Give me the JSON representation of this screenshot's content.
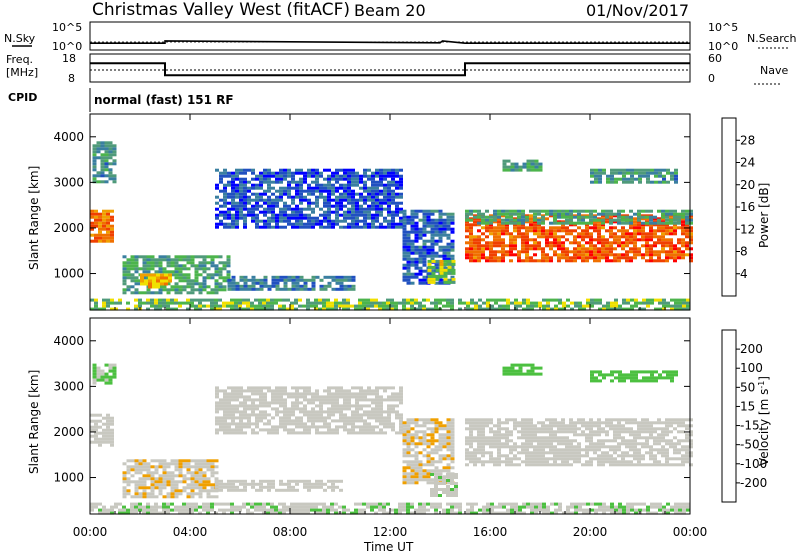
{
  "header": {
    "title": "Christmas Valley West (fitACF)",
    "beam": "Beam 20",
    "date": "01/Nov/2017"
  },
  "status_panel": {
    "nsky_label": "N.Sky",
    "nsearch_label": "N.Search",
    "freq_label_line1": "Freq.",
    "freq_label_line2": "[MHz]",
    "nave_label": "Nave",
    "cpid_label": "CPID",
    "cpid_value": "normal (fast) 151 RF",
    "noise_ticks_left": [
      "10^5",
      "10^0"
    ],
    "noise_ticks_right": [
      "10^5",
      "10^0"
    ],
    "freq_ticks": [
      "18",
      "8"
    ],
    "nave_ticks": [
      "60",
      "0"
    ]
  },
  "time_axis": {
    "label": "Time UT",
    "ticks": [
      "00:00",
      "04:00",
      "08:00",
      "12:00",
      "16:00",
      "20:00",
      "00:00"
    ]
  },
  "colors": {
    "power_scale": [
      "#0000ff",
      "#2050c0",
      "#3a7fa0",
      "#4f9a7a",
      "#4cb44c",
      "#f0e000",
      "#f0a000",
      "#f07000",
      "#f04000",
      "#ff0000"
    ],
    "velocity_scale": [
      "#2020c0",
      "#3050b0",
      "#3a8a5a",
      "#4cc040",
      "#c8c8c0",
      "#c8c8c0",
      "#f0a000",
      "#f08000",
      "#f05000",
      "#ff0000"
    ]
  },
  "chart_data": [
    {
      "type": "line",
      "name": "noise-panel",
      "x_unit": "hours UT",
      "xlim": [
        0,
        24
      ],
      "y_scale": "log",
      "ylim": [
        1,
        100000
      ],
      "series": [
        {
          "name": "N.Sky",
          "x": [
            0,
            3,
            3,
            14,
            14.1,
            15,
            24
          ],
          "y": [
            10,
            10,
            30,
            12,
            30,
            10,
            10
          ]
        }
      ]
    },
    {
      "type": "line",
      "name": "frequency-panel",
      "x_unit": "hours UT",
      "xlim": [
        0,
        24
      ],
      "ylim": [
        8,
        18
      ],
      "series": [
        {
          "name": "Freq.",
          "x": [
            0,
            3,
            3,
            15,
            15,
            24
          ],
          "y": [
            15,
            15,
            10,
            10,
            15,
            15
          ]
        }
      ]
    },
    {
      "type": "heatmap",
      "name": "power-panel",
      "xlabel": "Time UT",
      "ylabel": "Slant Range [km]",
      "x_unit": "hours UT",
      "xlim": [
        0,
        24
      ],
      "ylim": [
        200,
        4500
      ],
      "yticks": [
        1000,
        2000,
        3000,
        4000
      ],
      "colorbar": {
        "label": "Power [dB]",
        "ticks": [
          4,
          8,
          12,
          16,
          20,
          24,
          28
        ],
        "range": [
          0,
          32
        ]
      },
      "regions": [
        {
          "t0": 0.0,
          "t1": 0.9,
          "r0": 1700,
          "r1": 2400,
          "value": 24
        },
        {
          "t0": 0.1,
          "t1": 1.0,
          "r0": 3000,
          "r1": 3900,
          "value": 10
        },
        {
          "t0": 1.3,
          "t1": 5.5,
          "r0": 600,
          "r1": 1400,
          "value": 12
        },
        {
          "t0": 2.0,
          "t1": 3.2,
          "r0": 700,
          "r1": 1000,
          "value": 20
        },
        {
          "t0": 5.5,
          "t1": 10.5,
          "r0": 650,
          "r1": 950,
          "value": 8
        },
        {
          "t0": 5.0,
          "t1": 12.5,
          "r0": 2000,
          "r1": 3300,
          "value": 5
        },
        {
          "t0": 12.5,
          "t1": 14.5,
          "r0": 800,
          "r1": 2400,
          "value": 6
        },
        {
          "t0": 13.5,
          "t1": 14.6,
          "r0": 800,
          "r1": 1300,
          "value": 16
        },
        {
          "t0": 15.0,
          "t1": 24.0,
          "r0": 1300,
          "r1": 2300,
          "value": 26
        },
        {
          "t0": 15.0,
          "t1": 24.0,
          "r0": 2100,
          "r1": 2400,
          "value": 12
        },
        {
          "t0": 16.5,
          "t1": 18.0,
          "r0": 3250,
          "r1": 3500,
          "value": 12
        },
        {
          "t0": 20.0,
          "t1": 23.5,
          "r0": 3000,
          "r1": 3300,
          "value": 10
        },
        {
          "t0": 0.0,
          "t1": 24.0,
          "r0": 200,
          "r1": 450,
          "value": 14
        }
      ]
    },
    {
      "type": "heatmap",
      "name": "velocity-panel",
      "xlabel": "Time UT",
      "ylabel": "Slant Range [km]",
      "x_unit": "hours UT",
      "xlim": [
        0,
        24
      ],
      "ylim": [
        200,
        4500
      ],
      "yticks": [
        1000,
        2000,
        3000,
        4000
      ],
      "colorbar": {
        "label": "Velocity [m s^-1]",
        "ticks": [
          200,
          100,
          50,
          15,
          -15,
          -50,
          -100,
          -200
        ],
        "range": [
          -250,
          250
        ]
      },
      "regions": [
        {
          "t0": 0.0,
          "t1": 0.9,
          "r0": 1700,
          "r1": 2400,
          "value": 0
        },
        {
          "t0": 0.1,
          "t1": 1.0,
          "r0": 3100,
          "r1": 3500,
          "value": -60
        },
        {
          "t0": 1.3,
          "t1": 5.0,
          "r0": 600,
          "r1": 1400,
          "value": 40
        },
        {
          "t0": 5.0,
          "t1": 10.0,
          "r0": 700,
          "r1": 950,
          "value": 0
        },
        {
          "t0": 5.0,
          "t1": 12.5,
          "r0": 2000,
          "r1": 3000,
          "value": 0
        },
        {
          "t0": 12.5,
          "t1": 14.5,
          "r0": 900,
          "r1": 2300,
          "value": 40
        },
        {
          "t0": 13.6,
          "t1": 14.6,
          "r0": 600,
          "r1": 1100,
          "value": -40
        },
        {
          "t0": 15.0,
          "t1": 24.0,
          "r0": 1300,
          "r1": 2300,
          "value": 0
        },
        {
          "t0": 16.5,
          "t1": 18.0,
          "r0": 3250,
          "r1": 3500,
          "value": -80
        },
        {
          "t0": 20.0,
          "t1": 23.5,
          "r0": 3150,
          "r1": 3350,
          "value": -80
        },
        {
          "t0": 0.0,
          "t1": 24.0,
          "r0": 200,
          "r1": 450,
          "value": -40
        }
      ]
    }
  ]
}
